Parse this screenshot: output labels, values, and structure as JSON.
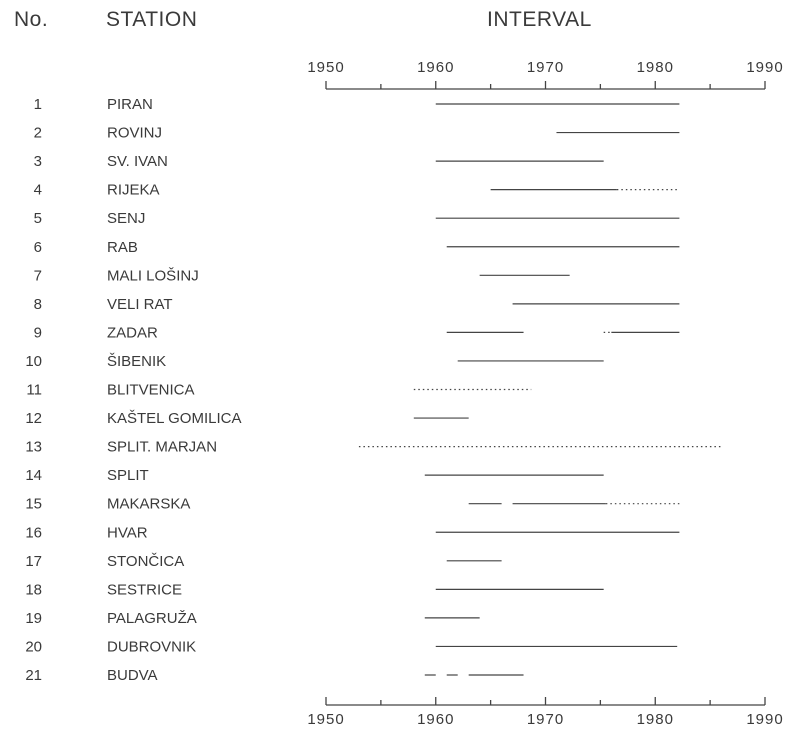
{
  "headers": {
    "no": "No.",
    "station": "STATION",
    "interval": "INTERVAL"
  },
  "chart_data": {
    "type": "gantt",
    "xlim": [
      1950,
      1990
    ],
    "xticks": [
      1950,
      1960,
      1970,
      1980,
      1990
    ],
    "line_color": "#444444",
    "rows": [
      {
        "no": "1",
        "station": "PIRAN",
        "solid": [
          [
            1960.0,
            1982.2
          ]
        ],
        "dotted": []
      },
      {
        "no": "2",
        "station": "ROVINJ",
        "solid": [
          [
            1971.0,
            1982.2
          ]
        ],
        "dotted": []
      },
      {
        "no": "3",
        "station": "SV. IVAN",
        "solid": [
          [
            1960.0,
            1975.3
          ]
        ],
        "dotted": []
      },
      {
        "no": "4",
        "station": "RIJEKA",
        "solid": [
          [
            1965.0,
            1976.5
          ]
        ],
        "dotted": [
          [
            1976.5,
            1982.2
          ]
        ]
      },
      {
        "no": "5",
        "station": "SENJ",
        "solid": [
          [
            1960.0,
            1982.2
          ]
        ],
        "dotted": []
      },
      {
        "no": "6",
        "station": "RAB",
        "solid": [
          [
            1961.0,
            1982.2
          ]
        ],
        "dotted": []
      },
      {
        "no": "7",
        "station": "MALI LOŠINJ",
        "solid": [
          [
            1964.0,
            1972.2
          ]
        ],
        "dotted": []
      },
      {
        "no": "8",
        "station": "VELI RAT",
        "solid": [
          [
            1967.0,
            1982.2
          ]
        ],
        "dotted": []
      },
      {
        "no": "9",
        "station": "ZADAR",
        "solid": [
          [
            1961.0,
            1968.0
          ],
          [
            1976.0,
            1982.2
          ]
        ],
        "dotted": [
          [
            1975.3,
            1976.0
          ]
        ]
      },
      {
        "no": "10",
        "station": "ŠIBENIK",
        "solid": [
          [
            1962.0,
            1975.3
          ]
        ],
        "dotted": []
      },
      {
        "no": "11",
        "station": "BLITVENICA",
        "solid": [],
        "dotted": [
          [
            1958.0,
            1968.7
          ]
        ]
      },
      {
        "no": "12",
        "station": "KAŠTEL GOMILICA",
        "solid": [
          [
            1958.0,
            1963.0
          ]
        ],
        "dotted": []
      },
      {
        "no": "13",
        "station": "SPLIT. MARJAN",
        "solid": [],
        "dotted": [
          [
            1953.0,
            1986.0
          ]
        ]
      },
      {
        "no": "14",
        "station": "SPLIT",
        "solid": [
          [
            1959.0,
            1975.3
          ]
        ],
        "dotted": []
      },
      {
        "no": "15",
        "station": "MAKARSKA",
        "solid": [
          [
            1963.0,
            1966.0
          ],
          [
            1967.0,
            1975.5
          ]
        ],
        "dotted": [
          [
            1975.5,
            1982.2
          ]
        ]
      },
      {
        "no": "16",
        "station": "HVAR",
        "solid": [
          [
            1960.0,
            1982.2
          ]
        ],
        "dotted": []
      },
      {
        "no": "17",
        "station": "STONČICA",
        "solid": [
          [
            1961.0,
            1966.0
          ]
        ],
        "dotted": []
      },
      {
        "no": "18",
        "station": "SESTRICE",
        "solid": [
          [
            1960.0,
            1975.3
          ]
        ],
        "dotted": []
      },
      {
        "no": "19",
        "station": "PALAGRUŽA",
        "solid": [
          [
            1959.0,
            1964.0
          ]
        ],
        "dotted": []
      },
      {
        "no": "20",
        "station": "DUBROVNIK",
        "solid": [
          [
            1960.0,
            1982.0
          ]
        ],
        "dotted": []
      },
      {
        "no": "21",
        "station": "BUDVA",
        "solid": [
          [
            1959.0,
            1960.0
          ],
          [
            1961.0,
            1962.0
          ],
          [
            1963.0,
            1968.0
          ]
        ],
        "dotted": []
      }
    ]
  }
}
